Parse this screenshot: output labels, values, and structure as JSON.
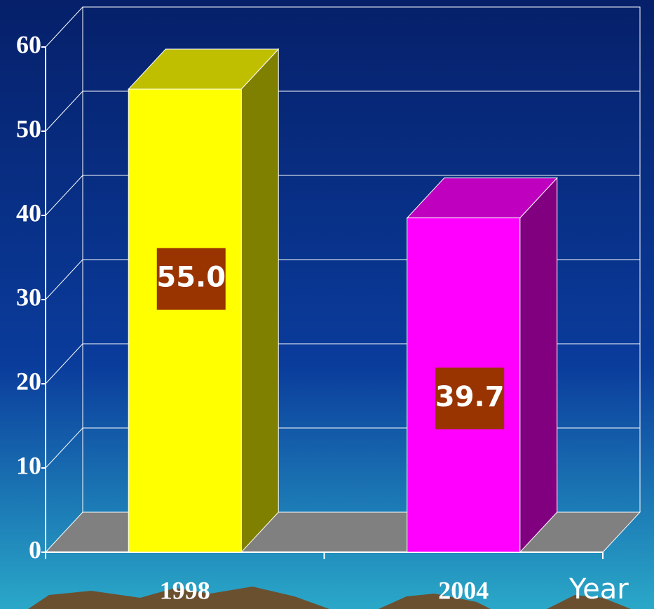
{
  "chart_data": {
    "type": "bar3d",
    "categories": [
      "1998",
      "2004"
    ],
    "values": [
      55,
      39.7
    ],
    "value_labels": [
      "55.0",
      "39.7"
    ],
    "colors": [
      "#ffff00",
      "#ff00ff"
    ],
    "x_label": "Year",
    "ylim": [
      0,
      60
    ],
    "yticks": [
      0,
      10,
      20,
      30,
      40,
      50,
      60
    ],
    "grid": true
  }
}
